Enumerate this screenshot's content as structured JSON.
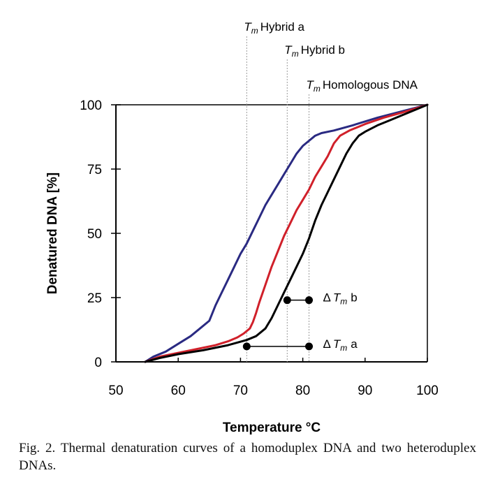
{
  "chart_data": {
    "type": "line",
    "xlabel": "Temperature °C",
    "ylabel": "Denatured DNA [%]",
    "xlim": [
      50,
      100
    ],
    "ylim": [
      0,
      100
    ],
    "x_ticks": [
      50,
      60,
      70,
      80,
      90,
      100
    ],
    "y_ticks": [
      0,
      25,
      50,
      75,
      100
    ],
    "grid": false,
    "series": [
      {
        "id": "hybrid-a",
        "color": "#2a2a82",
        "x": [
          54.7,
          56,
          58,
          60,
          62,
          63.5,
          65,
          66,
          67,
          68,
          69,
          70,
          71,
          72,
          73,
          74,
          75,
          76,
          77,
          78,
          79,
          80,
          81,
          82,
          83,
          85,
          88,
          92,
          96,
          100
        ],
        "y": [
          0,
          2,
          4,
          7,
          10,
          13,
          16,
          22,
          27,
          32,
          37,
          42,
          46,
          51,
          56,
          61,
          65,
          69,
          73,
          77,
          81,
          84,
          86,
          88,
          89,
          90,
          92,
          95,
          97.5,
          100
        ]
      },
      {
        "id": "hybrid-b",
        "color": "#d0202a",
        "x": [
          54.7,
          57,
          60,
          63,
          66,
          68,
          69.5,
          70.5,
          71.5,
          72,
          72.5,
          73,
          74,
          75,
          76,
          77,
          78,
          79,
          80,
          81,
          82,
          83,
          84,
          85,
          86,
          87.5,
          90,
          93,
          96,
          100
        ],
        "y": [
          0,
          2,
          3.5,
          5,
          6.5,
          8,
          9.5,
          11,
          13,
          15.5,
          19,
          23,
          30,
          37,
          43,
          49,
          54,
          59,
          63,
          67,
          72,
          76,
          80,
          85,
          88,
          90,
          92.5,
          95,
          97,
          100
        ]
      },
      {
        "id": "homologous",
        "color": "#000000",
        "x": [
          54.7,
          57,
          60,
          64,
          68,
          71,
          72.5,
          74,
          75,
          76,
          77,
          78,
          79,
          80,
          81,
          82,
          83,
          84,
          85,
          86,
          87,
          88,
          89,
          90,
          92,
          94,
          96,
          98,
          100
        ],
        "y": [
          0,
          1.5,
          3,
          4.5,
          6.5,
          8.5,
          10,
          13,
          17,
          22,
          27,
          32,
          37,
          42,
          48,
          55,
          61,
          66,
          71,
          76,
          81,
          85,
          88,
          89.5,
          92,
          94,
          96,
          98,
          100
        ]
      }
    ],
    "tm_markers": [
      {
        "T": "T",
        "sub": "m",
        "text": "Hybrid a",
        "x": 71.0
      },
      {
        "T": "T",
        "sub": "m",
        "text": "Hybrid b",
        "x": 77.5
      },
      {
        "T": "T",
        "sub": "m",
        "text": "Homologous DNA",
        "x": 81.0
      }
    ],
    "delta_markers": [
      {
        "delta": "Δ",
        "T": "T",
        "sub": "m",
        "text": "b",
        "x1": 77.5,
        "x2": 81.0,
        "y": 24
      },
      {
        "delta": "Δ",
        "T": "T",
        "sub": "m",
        "text": "a",
        "x1": 71.0,
        "x2": 81.0,
        "y": 6
      }
    ]
  },
  "caption": "Fig. 2. Thermal denaturation curves of a homoduplex DNA and two heteroduplex DNAs."
}
